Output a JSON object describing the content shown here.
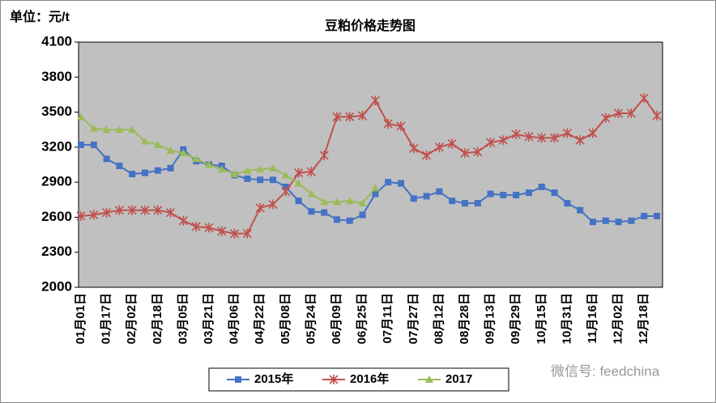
{
  "chart_data": {
    "type": "line",
    "title": "豆粕价格走势图",
    "unit_label": "单位：元/t",
    "watermark": "微信号: feedchina",
    "categories": [
      "01月01日",
      null,
      "01月17日",
      null,
      "02月02日",
      null,
      "02月18日",
      null,
      "03月05日",
      null,
      "03月21日",
      null,
      "04月06日",
      null,
      "04月22日",
      null,
      "05月08日",
      null,
      "05月24日",
      null,
      "06月09日",
      null,
      "06月25日",
      null,
      "07月11日",
      null,
      "07月27日",
      null,
      "08月12日",
      null,
      "08月28日",
      null,
      "09月13日",
      null,
      "09月29日",
      null,
      "10月15日",
      null,
      "10月31日",
      null,
      "11月16日",
      null,
      "12月02日",
      null,
      "12月18日",
      null
    ],
    "series": [
      {
        "name": "2015年",
        "color": "#4472c4",
        "marker": "square",
        "values": [
          3220,
          3220,
          3100,
          3040,
          2970,
          2980,
          3000,
          3020,
          3180,
          3080,
          3050,
          3040,
          2960,
          2930,
          2920,
          2920,
          2860,
          2740,
          2650,
          2640,
          2580,
          2570,
          2620,
          2800,
          2900,
          2890,
          2760,
          2780,
          2820,
          2740,
          2720,
          2720,
          2800,
          2790,
          2790,
          2810,
          2860,
          2810,
          2720,
          2660,
          2560,
          2570,
          2560,
          2570,
          2610,
          2610
        ]
      },
      {
        "name": "2016年",
        "color": "#c0504d",
        "marker": "star",
        "values": [
          2610,
          2620,
          2640,
          2660,
          2660,
          2660,
          2660,
          2640,
          2570,
          2520,
          2510,
          2480,
          2460,
          2460,
          2680,
          2710,
          2820,
          2980,
          2990,
          3130,
          3460,
          3460,
          3470,
          3600,
          3400,
          3380,
          3190,
          3130,
          3200,
          3230,
          3150,
          3160,
          3240,
          3260,
          3310,
          3290,
          3280,
          3280,
          3320,
          3260,
          3320,
          3450,
          3490,
          3490,
          3620,
          3470
        ]
      },
      {
        "name": "2017",
        "color": "#9bbb59",
        "marker": "triangle",
        "values": [
          3460,
          3360,
          3350,
          3350,
          3350,
          3250,
          3220,
          3170,
          3150,
          3100,
          3050,
          3010,
          2970,
          3000,
          3010,
          3020,
          2960,
          2890,
          2800,
          2730,
          2730,
          2740,
          2720,
          2850,
          null,
          null,
          null,
          null,
          null,
          null,
          null,
          null,
          null,
          null,
          null,
          null,
          null,
          null,
          null,
          null,
          null,
          null,
          null,
          null,
          null,
          null
        ]
      }
    ],
    "ylim": [
      2000,
      4100
    ],
    "yticks": [
      2000,
      2300,
      2600,
      2900,
      3200,
      3500,
      3800,
      4100
    ],
    "grid": false,
    "legend": "bottom"
  }
}
